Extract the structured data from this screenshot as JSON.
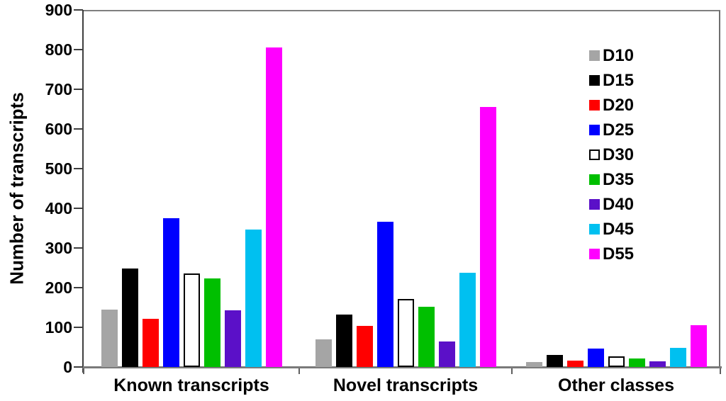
{
  "chart_data": {
    "type": "bar",
    "title": "",
    "xlabel": "",
    "ylabel": "Number of transcripts",
    "ylim": [
      0,
      900
    ],
    "ytick_step": 100,
    "yticks": [
      900,
      800,
      700,
      600,
      500,
      400,
      300,
      200,
      100,
      0
    ],
    "grid": false,
    "legend_position": "upper right",
    "categories": [
      "Known transcripts",
      "Novel transcripts",
      "Other classes"
    ],
    "series": [
      {
        "name": "D10",
        "color": "#a5a5a5",
        "values": [
          145,
          69,
          12
        ]
      },
      {
        "name": "D15",
        "color": "#000000",
        "values": [
          248,
          133,
          30
        ]
      },
      {
        "name": "D20",
        "color": "#ff0000",
        "values": [
          122,
          103,
          16
        ]
      },
      {
        "name": "D25",
        "color": "#0000ff",
        "values": [
          375,
          366,
          47
        ]
      },
      {
        "name": "D30",
        "color": "#ffffff",
        "border_color": "#000000",
        "values": [
          235,
          171,
          26
        ]
      },
      {
        "name": "D35",
        "color": "#00bf00",
        "values": [
          224,
          151,
          21
        ]
      },
      {
        "name": "D40",
        "color": "#5b10c8",
        "values": [
          143,
          65,
          14
        ]
      },
      {
        "name": "D45",
        "color": "#00c0f0",
        "values": [
          346,
          237,
          49
        ]
      },
      {
        "name": "D55",
        "color": "#ff00ff",
        "values": [
          806,
          656,
          105
        ]
      }
    ],
    "axis_colors": {
      "y_axis": "#3f3f3f",
      "x_axis": "#7a7a7a",
      "frame": "#7f7f7f"
    }
  }
}
